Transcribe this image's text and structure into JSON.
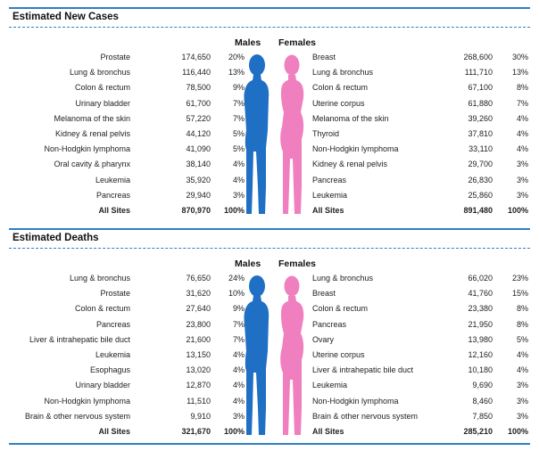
{
  "labels": {
    "males": "Males",
    "females": "Females"
  },
  "colors": {
    "accent": "#2e7fc1",
    "male": "#1f6fc4",
    "female": "#f07fc0"
  },
  "chart_data": [
    {
      "type": "table",
      "title": "Estimated New Cases",
      "males": [
        {
          "site": "Prostate",
          "count": "174,650",
          "pct": "20%"
        },
        {
          "site": "Lung & bronchus",
          "count": "116,440",
          "pct": "13%"
        },
        {
          "site": "Colon & rectum",
          "count": "78,500",
          "pct": "9%"
        },
        {
          "site": "Urinary bladder",
          "count": "61,700",
          "pct": "7%"
        },
        {
          "site": "Melanoma of the skin",
          "count": "57,220",
          "pct": "7%"
        },
        {
          "site": "Kidney & renal pelvis",
          "count": "44,120",
          "pct": "5%"
        },
        {
          "site": "Non-Hodgkin lymphoma",
          "count": "41,090",
          "pct": "5%"
        },
        {
          "site": "Oral cavity & pharynx",
          "count": "38,140",
          "pct": "4%"
        },
        {
          "site": "Leukemia",
          "count": "35,920",
          "pct": "4%"
        },
        {
          "site": "Pancreas",
          "count": "29,940",
          "pct": "3%"
        },
        {
          "site": "All Sites",
          "count": "870,970",
          "pct": "100%"
        }
      ],
      "females": [
        {
          "site": "Breast",
          "count": "268,600",
          "pct": "30%"
        },
        {
          "site": "Lung & bronchus",
          "count": "111,710",
          "pct": "13%"
        },
        {
          "site": "Colon & rectum",
          "count": "67,100",
          "pct": "8%"
        },
        {
          "site": "Uterine corpus",
          "count": "61,880",
          "pct": "7%"
        },
        {
          "site": "Melanoma of the skin",
          "count": "39,260",
          "pct": "4%"
        },
        {
          "site": "Thyroid",
          "count": "37,810",
          "pct": "4%"
        },
        {
          "site": "Non-Hodgkin lymphoma",
          "count": "33,110",
          "pct": "4%"
        },
        {
          "site": "Kidney & renal pelvis",
          "count": "29,700",
          "pct": "3%"
        },
        {
          "site": "Pancreas",
          "count": "26,830",
          "pct": "3%"
        },
        {
          "site": "Leukemia",
          "count": "25,860",
          "pct": "3%"
        },
        {
          "site": "All Sites",
          "count": "891,480",
          "pct": "100%"
        }
      ]
    },
    {
      "type": "table",
      "title": "Estimated Deaths",
      "males": [
        {
          "site": "Lung & bronchus",
          "count": "76,650",
          "pct": "24%"
        },
        {
          "site": "Prostate",
          "count": "31,620",
          "pct": "10%"
        },
        {
          "site": "Colon & rectum",
          "count": "27,640",
          "pct": "9%"
        },
        {
          "site": "Pancreas",
          "count": "23,800",
          "pct": "7%"
        },
        {
          "site": "Liver & intrahepatic bile duct",
          "count": "21,600",
          "pct": "7%"
        },
        {
          "site": "Leukemia",
          "count": "13,150",
          "pct": "4%"
        },
        {
          "site": "Esophagus",
          "count": "13,020",
          "pct": "4%"
        },
        {
          "site": "Urinary bladder",
          "count": "12,870",
          "pct": "4%"
        },
        {
          "site": "Non-Hodgkin lymphoma",
          "count": "11,510",
          "pct": "4%"
        },
        {
          "site": "Brain & other nervous system",
          "count": "9,910",
          "pct": "3%"
        },
        {
          "site": "All Sites",
          "count": "321,670",
          "pct": "100%"
        }
      ],
      "females": [
        {
          "site": "Lung & bronchus",
          "count": "66,020",
          "pct": "23%"
        },
        {
          "site": "Breast",
          "count": "41,760",
          "pct": "15%"
        },
        {
          "site": "Colon & rectum",
          "count": "23,380",
          "pct": "8%"
        },
        {
          "site": "Pancreas",
          "count": "21,950",
          "pct": "8%"
        },
        {
          "site": "Ovary",
          "count": "13,980",
          "pct": "5%"
        },
        {
          "site": "Uterine corpus",
          "count": "12,160",
          "pct": "4%"
        },
        {
          "site": "Liver & intrahepatic bile duct",
          "count": "10,180",
          "pct": "4%"
        },
        {
          "site": "Leukemia",
          "count": "9,690",
          "pct": "3%"
        },
        {
          "site": "Non-Hodgkin lymphoma",
          "count": "8,460",
          "pct": "3%"
        },
        {
          "site": "Brain & other nervous system",
          "count": "7,850",
          "pct": "3%"
        },
        {
          "site": "All Sites",
          "count": "285,210",
          "pct": "100%"
        }
      ]
    }
  ]
}
